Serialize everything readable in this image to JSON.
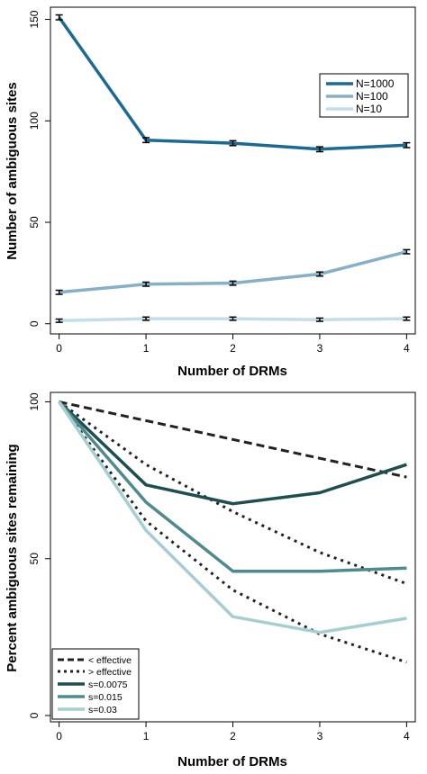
{
  "chart_data": [
    {
      "type": "line",
      "title": "",
      "xlabel": "Number of DRMs",
      "ylabel": "Number of ambiguous sites",
      "x": [
        0,
        1,
        2,
        3,
        4
      ],
      "xlim": [
        -0.1,
        4.1
      ],
      "ylim": [
        -5,
        156
      ],
      "x_ticks": [
        "0",
        "1",
        "2",
        "3",
        "4"
      ],
      "y_ticks": [
        "0",
        "50",
        "100",
        "150"
      ],
      "grid": false,
      "legend_position": "right",
      "error_bars": true,
      "series": [
        {
          "name": "N=1000",
          "values": [
            151,
            90.5,
            89,
            86,
            88
          ],
          "error": [
            1.2,
            1.2,
            1.2,
            1.2,
            1.2
          ],
          "color": "#1b6a91"
        },
        {
          "name": "N=100",
          "values": [
            15.5,
            19.5,
            20,
            24.5,
            35.5
          ],
          "error": [
            1,
            1,
            1,
            1,
            1
          ],
          "color": "#86afc8"
        },
        {
          "name": "N=10",
          "values": [
            1.5,
            2.5,
            2.5,
            2,
            2.5
          ],
          "error": [
            0.8,
            0.8,
            0.8,
            0.8,
            0.8
          ],
          "color": "#c5dde9"
        }
      ]
    },
    {
      "type": "line",
      "title": "",
      "xlabel": "Number of DRMs",
      "ylabel": "Percent ambiguous sites remaining",
      "x": [
        0,
        1,
        2,
        3,
        4
      ],
      "xlim": [
        -0.1,
        4.1
      ],
      "ylim": [
        -2,
        103
      ],
      "x_ticks": [
        "0",
        "1",
        "2",
        "3",
        "4"
      ],
      "y_ticks": [
        "0",
        "50",
        "100"
      ],
      "grid": false,
      "legend_position": "bottom-left",
      "series": [
        {
          "name": "< effective",
          "style": "dashed-thick",
          "values": [
            100,
            94,
            88,
            82,
            76
          ],
          "color": "#222222"
        },
        {
          "name": "> effective",
          "style": "dotted",
          "values": [
            100,
            80,
            65,
            52,
            42
          ],
          "color": "#222222"
        },
        {
          "name": "",
          "style": "dotted",
          "values": [
            100,
            62,
            40,
            26,
            17
          ],
          "color": "#222222"
        },
        {
          "name": "s=0.0075",
          "style": "solid",
          "values": [
            100,
            73.5,
            67.5,
            71,
            80
          ],
          "color": "#1e4e4f"
        },
        {
          "name": "s=0.015",
          "style": "solid",
          "values": [
            100,
            68,
            46,
            46,
            47
          ],
          "color": "#4f8a8c"
        },
        {
          "name": "s=0.03",
          "style": "solid",
          "values": [
            100,
            59,
            31.5,
            26.5,
            31
          ],
          "color": "#a6cdcf"
        }
      ]
    }
  ]
}
